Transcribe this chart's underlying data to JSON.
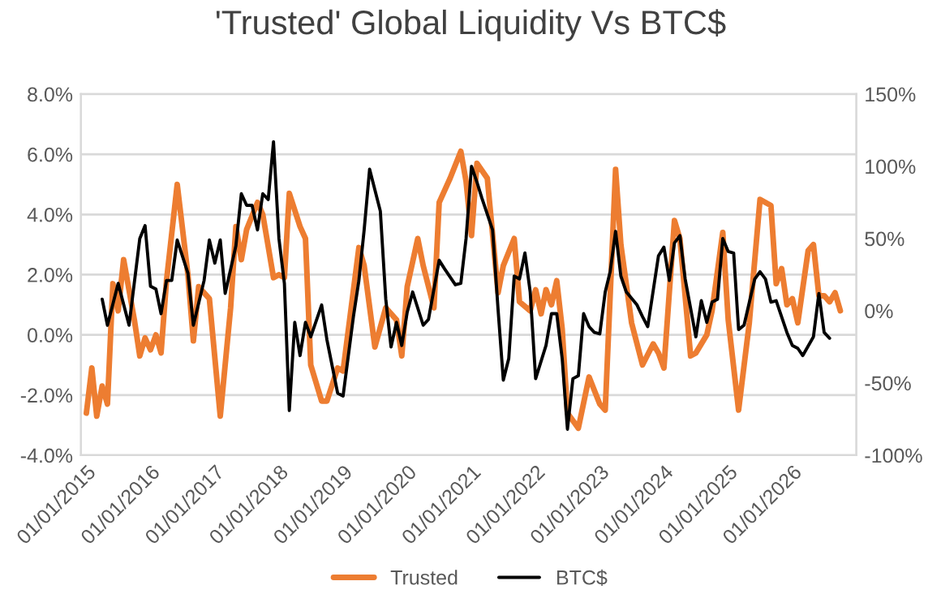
{
  "chart_data": {
    "type": "line",
    "title": "'Trusted' Global Liquidity Vs BTC$",
    "xlim": [
      "2014-12-01",
      "2026-12-31"
    ],
    "xticks": [
      {
        "value": "2015-01-01",
        "label": "01/01/2015"
      },
      {
        "value": "2016-01-01",
        "label": "01/01/2016"
      },
      {
        "value": "2017-01-01",
        "label": "01/01/2017"
      },
      {
        "value": "2018-01-01",
        "label": "01/01/2018"
      },
      {
        "value": "2019-01-01",
        "label": "01/01/2019"
      },
      {
        "value": "2020-01-01",
        "label": "01/01/2020"
      },
      {
        "value": "2021-01-01",
        "label": "01/01/2021"
      },
      {
        "value": "2022-01-01",
        "label": "01/01/2022"
      },
      {
        "value": "2023-01-01",
        "label": "01/01/2023"
      },
      {
        "value": "2024-01-01",
        "label": "01/01/2024"
      },
      {
        "value": "2025-01-01",
        "label": "01/01/2025"
      },
      {
        "value": "2026-01-01",
        "label": "01/01/2026"
      }
    ],
    "ylim": [
      -4,
      8
    ],
    "yticks": [
      {
        "value": -4,
        "label": "-4.0%"
      },
      {
        "value": -2,
        "label": "-2.0%"
      },
      {
        "value": 0,
        "label": "0.0%"
      },
      {
        "value": 2,
        "label": "2.0%"
      },
      {
        "value": 4,
        "label": "4.0%"
      },
      {
        "value": 6,
        "label": "6.0%"
      },
      {
        "value": 8,
        "label": "8.0%"
      }
    ],
    "y2lim": [
      -100,
      150
    ],
    "y2ticks": [
      {
        "value": -100,
        "label": "-100%"
      },
      {
        "value": -50,
        "label": "-50%"
      },
      {
        "value": 0,
        "label": "0%"
      },
      {
        "value": 50,
        "label": "50%"
      },
      {
        "value": 100,
        "label": "100%"
      },
      {
        "value": 150,
        "label": "150%"
      }
    ],
    "grid": "y",
    "legend": "bottom",
    "marker": "none",
    "line_style": "solid",
    "series": [
      {
        "name": "Trusted",
        "color": "#ed7d31",
        "axis": "y",
        "x": [
          "2015-01",
          "2015-02",
          "2015-03",
          "2015-04",
          "2015-05",
          "2015-06",
          "2015-07",
          "2015-08",
          "2015-10",
          "2015-11",
          "2015-12",
          "2016-01",
          "2016-02",
          "2016-03",
          "2016-04",
          "2016-06",
          "2016-08",
          "2016-09",
          "2016-10",
          "2016-12",
          "2017-02",
          "2017-04",
          "2017-05",
          "2017-06",
          "2017-07",
          "2017-09",
          "2017-10",
          "2017-12",
          "2018-01",
          "2018-02",
          "2018-03",
          "2018-05",
          "2018-06",
          "2018-07",
          "2018-09",
          "2018-10",
          "2018-12",
          "2019-01",
          "2019-04",
          "2019-05",
          "2019-07",
          "2019-09",
          "2019-11",
          "2019-12",
          "2020-01",
          "2020-03",
          "2020-04",
          "2020-06",
          "2020-07",
          "2020-09",
          "2020-11",
          "2020-12",
          "2021-01",
          "2021-02",
          "2021-04",
          "2021-06",
          "2021-07",
          "2021-09",
          "2021-10",
          "2021-12",
          "2022-01",
          "2022-02",
          "2022-03",
          "2022-04",
          "2022-05",
          "2022-06",
          "2022-07",
          "2022-09",
          "2022-11",
          "2023-01",
          "2023-02",
          "2023-04",
          "2023-05",
          "2023-07",
          "2023-09",
          "2023-11",
          "2023-12",
          "2024-01",
          "2024-03",
          "2024-04",
          "2024-06",
          "2024-07",
          "2024-09",
          "2024-10",
          "2024-12",
          "2025-01",
          "2025-03",
          "2025-05",
          "2025-07",
          "2025-08",
          "2025-09",
          "2025-10",
          "2025-11",
          "2025-12",
          "2026-01",
          "2026-02",
          "2026-04",
          "2026-05",
          "2026-06",
          "2026-07",
          "2026-08",
          "2026-09",
          "2026-10"
        ],
        "values": [
          -2.6,
          -1.1,
          -2.7,
          -1.7,
          -2.3,
          1.7,
          0.8,
          2.5,
          0.5,
          -0.7,
          -0.1,
          -0.5,
          0.0,
          -0.6,
          1.8,
          5.0,
          2.0,
          -0.2,
          1.6,
          1.2,
          -2.7,
          0.9,
          3.6,
          2.5,
          3.5,
          4.4,
          4.0,
          1.9,
          2.0,
          1.9,
          4.7,
          3.6,
          3.2,
          -1.0,
          -2.2,
          -2.2,
          -1.1,
          -1.2,
          2.9,
          2.3,
          -0.4,
          0.9,
          0.5,
          -0.7,
          1.6,
          3.2,
          2.3,
          0.9,
          4.4,
          5.2,
          6.1,
          5.1,
          3.3,
          5.7,
          5.2,
          1.4,
          2.3,
          3.2,
          1.1,
          0.8,
          1.5,
          0.7,
          1.5,
          1.0,
          1.8,
          0.2,
          -2.6,
          -3.1,
          -1.4,
          -2.3,
          -2.5,
          5.5,
          3.0,
          0.4,
          -1.0,
          -0.3,
          -0.6,
          -1.1,
          3.8,
          3.2,
          -0.7,
          -0.6,
          0.0,
          0.8,
          3.4,
          0.5,
          -2.5,
          0.4,
          4.5,
          4.4,
          4.3,
          1.7,
          2.2,
          1.0,
          1.2,
          0.4,
          2.8,
          3.0,
          1.3,
          1.3,
          1.1,
          1.4,
          0.8
        ]
      },
      {
        "name": "BTC$",
        "color": "#000000",
        "axis": "y2",
        "x": [
          "2015-04",
          "2015-05",
          "2015-07",
          "2015-09",
          "2015-11",
          "2015-12",
          "2016-01",
          "2016-02",
          "2016-03",
          "2016-04",
          "2016-05",
          "2016-06",
          "2016-08",
          "2016-09",
          "2016-11",
          "2016-12",
          "2017-01",
          "2017-02",
          "2017-03",
          "2017-05",
          "2017-06",
          "2017-07",
          "2017-08",
          "2017-09",
          "2017-10",
          "2017-11",
          "2017-12",
          "2018-01",
          "2018-02",
          "2018-03",
          "2018-04",
          "2018-05",
          "2018-06",
          "2018-07",
          "2018-09",
          "2018-10",
          "2018-12",
          "2019-01",
          "2019-03",
          "2019-04",
          "2019-05",
          "2019-06",
          "2019-08",
          "2019-09",
          "2019-10",
          "2019-11",
          "2019-12",
          "2020-01",
          "2020-02",
          "2020-04",
          "2020-05",
          "2020-07",
          "2020-08",
          "2020-10",
          "2020-11",
          "2020-12",
          "2021-01",
          "2021-02",
          "2021-03",
          "2021-05",
          "2021-06",
          "2021-07",
          "2021-08",
          "2021-09",
          "2021-10",
          "2021-11",
          "2021-12",
          "2022-01",
          "2022-03",
          "2022-04",
          "2022-05",
          "2022-06",
          "2022-07",
          "2022-08",
          "2022-09",
          "2022-10",
          "2022-11",
          "2022-12",
          "2023-01",
          "2023-02",
          "2023-03",
          "2023-04",
          "2023-05",
          "2023-06",
          "2023-08",
          "2023-09",
          "2023-10",
          "2023-12",
          "2024-01",
          "2024-02",
          "2024-03",
          "2024-04",
          "2024-05",
          "2024-07",
          "2024-08",
          "2024-09",
          "2024-10",
          "2024-11",
          "2024-12",
          "2025-01",
          "2025-02",
          "2025-03",
          "2025-04",
          "2025-06",
          "2025-07",
          "2025-08",
          "2025-09",
          "2025-10",
          "2025-12",
          "2026-01",
          "2026-02",
          "2026-03",
          "2026-05",
          "2026-06",
          "2026-07",
          "2026-08"
        ],
        "values": [
          8,
          -10,
          19,
          -10,
          50,
          59,
          17,
          15,
          -2,
          21,
          21,
          49,
          26,
          -10,
          21,
          49,
          33,
          49,
          12,
          45,
          81,
          73,
          73,
          56,
          81,
          77,
          117,
          50,
          19,
          -69,
          -8,
          -31,
          -8,
          -18,
          4,
          -20,
          -57,
          -59,
          -4,
          21,
          56,
          98,
          69,
          8,
          -25,
          -8,
          -24,
          -1,
          13,
          -10,
          -6,
          35,
          29,
          18,
          19,
          50,
          100,
          89,
          78,
          56,
          1,
          -48,
          -33,
          24,
          22,
          40,
          13,
          -47,
          -24,
          -2,
          -2,
          -33,
          -82,
          -47,
          -45,
          -2,
          -11,
          -15,
          -16,
          13,
          27,
          55,
          24,
          13,
          4,
          -4,
          -11,
          38,
          44,
          21,
          47,
          52,
          22,
          -18,
          7,
          -8,
          6,
          8,
          50,
          41,
          40,
          -13,
          -10,
          22,
          27,
          22,
          6,
          7,
          -15,
          -24,
          -26,
          -31,
          -18,
          12,
          -15,
          -19
        ]
      }
    ]
  }
}
